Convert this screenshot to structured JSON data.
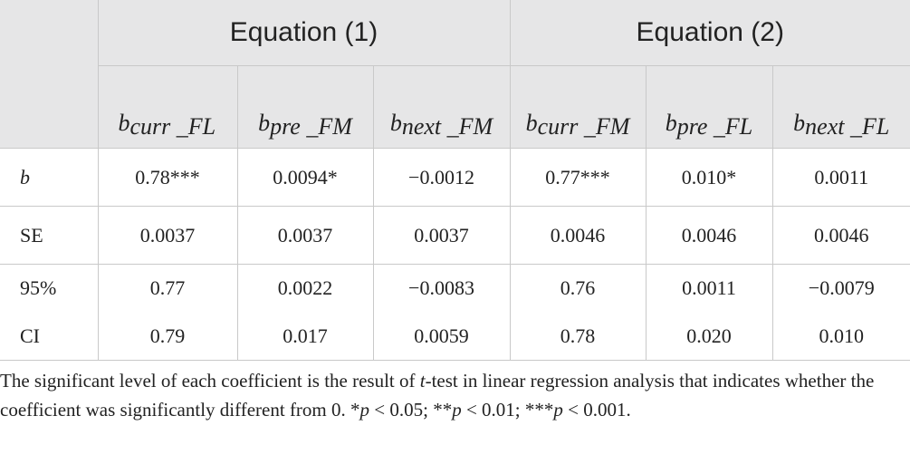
{
  "table": {
    "groups": [
      "Equation (1)",
      "Equation (2)"
    ],
    "columns": [
      {
        "symbol": "b",
        "subscript": "curr _FL"
      },
      {
        "symbol": "b",
        "subscript": "pre _FM"
      },
      {
        "symbol": "b",
        "subscript": "next _FM"
      },
      {
        "symbol": "b",
        "subscript": "curr _FM"
      },
      {
        "symbol": "b",
        "subscript": "pre _FL"
      },
      {
        "symbol": "b",
        "subscript": "next _FL"
      }
    ],
    "rows": [
      {
        "label": "b",
        "cells": [
          "0.78***",
          "0.0094*",
          "−0.0012",
          "0.77***",
          "0.010*",
          "0.0011"
        ]
      },
      {
        "label": "SE",
        "cells": [
          "0.0037",
          "0.0037",
          "0.0037",
          "0.0046",
          "0.0046",
          "0.0046"
        ]
      },
      {
        "label": "95%",
        "cells": [
          "0.77",
          "0.0022",
          "−0.0083",
          "0.76",
          "0.0011",
          "−0.0079"
        ]
      },
      {
        "label": "CI",
        "cells": [
          "0.79",
          "0.017",
          "0.0059",
          "0.78",
          "0.020",
          "0.010"
        ]
      }
    ]
  },
  "footnote": [
    {
      "text": "The significant level of each coefficient is the result of "
    },
    {
      "text": "t",
      "italic": true
    },
    {
      "text": "-test in linear regression analysis that indicates whether the coefficient was significantly different from 0. *"
    },
    {
      "text": "p",
      "italic": true
    },
    {
      "text": " < 0.05; **"
    },
    {
      "text": "p",
      "italic": true
    },
    {
      "text": " < 0.01; ***"
    },
    {
      "text": "p",
      "italic": true
    },
    {
      "text": " < 0.001."
    }
  ]
}
